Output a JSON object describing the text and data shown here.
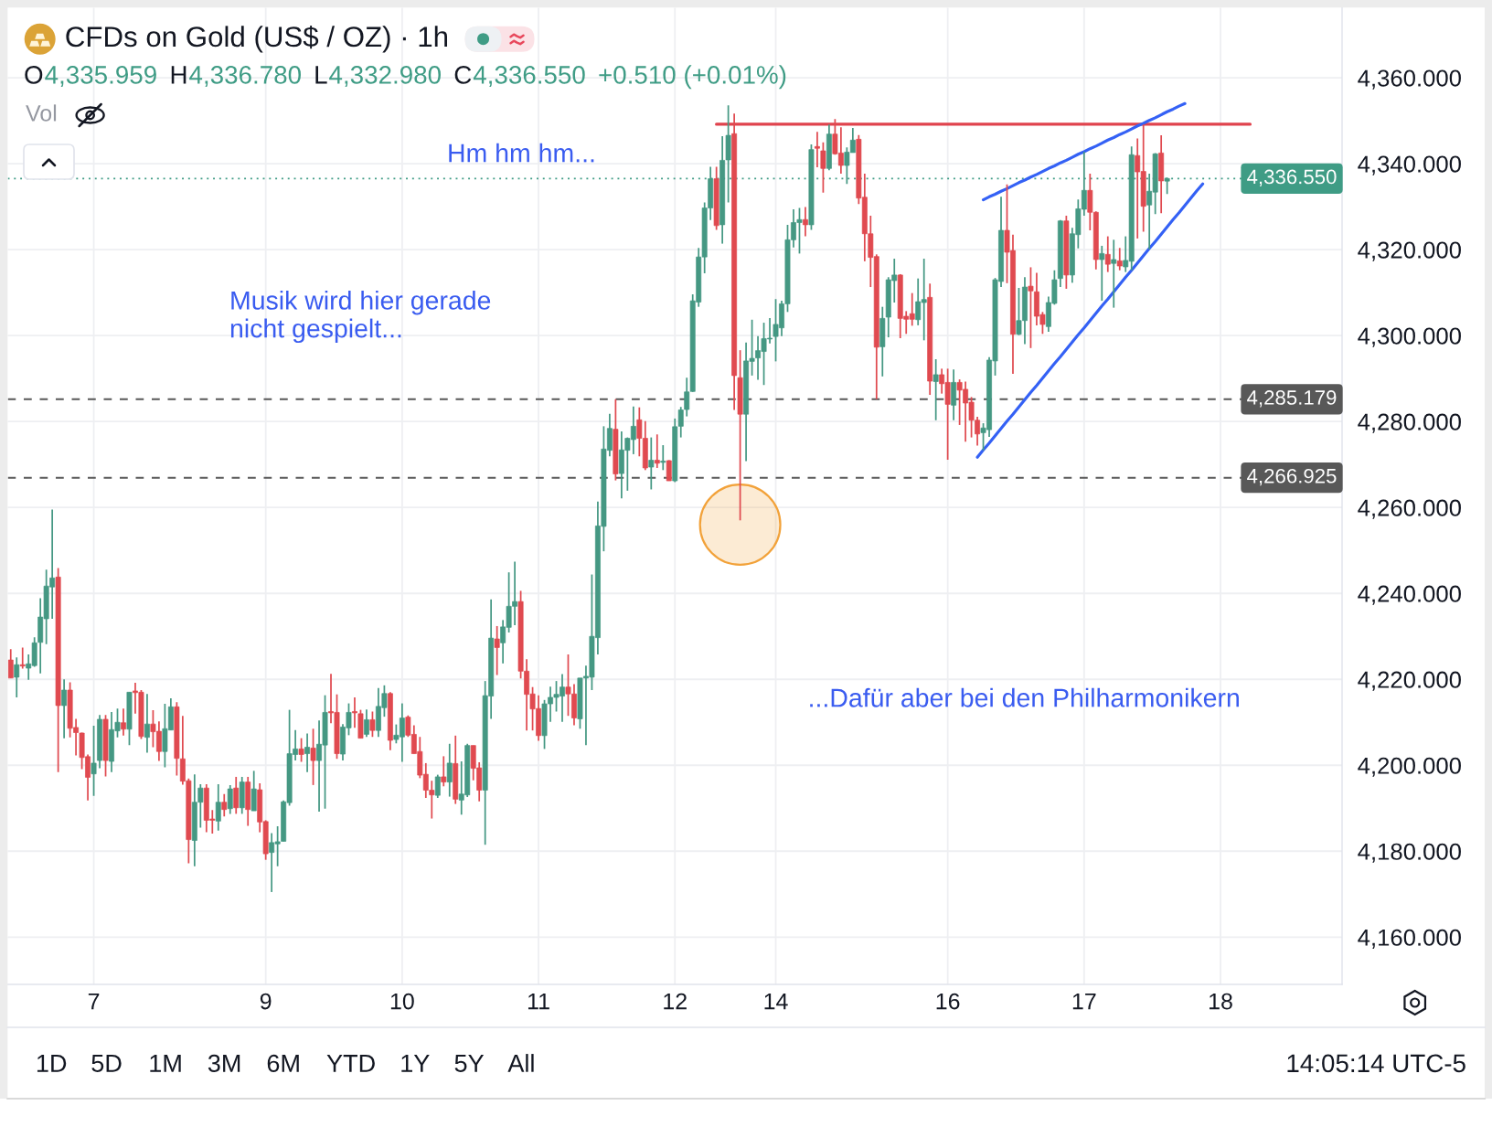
{
  "chart_data": {
    "type": "candlestick",
    "title": "CFDs on Gold (US$ / OZ) · 1h",
    "categories": [
      null,
      null,
      null,
      null,
      null,
      null,
      null,
      null,
      null,
      null,
      null,
      null,
      null,
      null,
      "7",
      null,
      null,
      null,
      null,
      null,
      null,
      null,
      null,
      null,
      null,
      null,
      null,
      null,
      null,
      null,
      null,
      null,
      null,
      null,
      null,
      null,
      null,
      null,
      null,
      null,
      null,
      null,
      null,
      "9",
      null,
      null,
      null,
      null,
      null,
      null,
      null,
      null,
      null,
      null,
      null,
      null,
      null,
      null,
      null,
      null,
      null,
      null,
      null,
      null,
      null,
      null,
      "10",
      null,
      null,
      null,
      null,
      null,
      null,
      null,
      null,
      null,
      null,
      null,
      null,
      null,
      null,
      null,
      null,
      null,
      null,
      null,
      null,
      null,
      null,
      "11",
      null,
      null,
      null,
      null,
      null,
      null,
      null,
      null,
      null,
      null,
      null,
      null,
      null,
      null,
      null,
      null,
      null,
      null,
      null,
      null,
      null,
      null,
      "12",
      null,
      null,
      null,
      null,
      null,
      null,
      null,
      null,
      null,
      null,
      null,
      null,
      null,
      null,
      null,
      null,
      "14",
      null,
      null,
      null,
      null,
      null,
      null,
      null,
      null,
      null,
      null,
      null,
      null,
      null,
      null,
      null,
      null,
      null,
      null,
      null,
      null,
      null,
      null,
      null,
      null,
      null,
      null,
      null,
      null,
      "16",
      null,
      null,
      null,
      null,
      null,
      null,
      null,
      null,
      null,
      null,
      null,
      null,
      null,
      null,
      null,
      null,
      null,
      null,
      null,
      null,
      null,
      null,
      "17",
      null,
      null,
      null,
      null,
      null,
      null,
      null,
      null,
      null,
      null,
      null,
      null,
      null,
      null,
      null,
      null,
      null,
      null,
      null,
      null,
      null,
      null,
      "18",
      null,
      null,
      null,
      null,
      null,
      null,
      null,
      null,
      null,
      null,
      null,
      null,
      null,
      null,
      null,
      null,
      null,
      null,
      null,
      null
    ],
    "ohlc": [
      [
        4224.5,
        4227.0,
        4220.3,
        4220.3
      ],
      [
        4220.5,
        4225.1,
        4215.8,
        4223.4
      ],
      [
        4223.4,
        4227.4,
        4222.5,
        4223.1
      ],
      [
        4222.6,
        4225.8,
        4219.9,
        4223.6
      ],
      [
        4223.2,
        4229.8,
        4222.9,
        4228.5
      ],
      [
        4228.6,
        4238.9,
        4221.4,
        4234.5
      ],
      [
        4234.1,
        4245.5,
        4228.2,
        4241.7
      ],
      [
        4241.5,
        4259.5,
        4234.1,
        4243.6
      ],
      [
        4243.8,
        4245.9,
        4198.4,
        4213.9
      ],
      [
        4213.9,
        4220.0,
        4206.3,
        4217.5
      ],
      [
        4217.5,
        4219.3,
        4206.5,
        4208.6
      ],
      [
        4208.8,
        4210.8,
        4202.3,
        4207.6
      ],
      [
        4207.5,
        4207.6,
        4199.1,
        4201.8
      ],
      [
        4202.0,
        4202.5,
        4191.8,
        4197.2
      ],
      [
        4198.0,
        4209.2,
        4192.9,
        4200.5
      ],
      [
        4201.1,
        4211.7,
        4199.3,
        4210.7
      ],
      [
        4210.7,
        4211.7,
        4197.4,
        4201.1
      ],
      [
        4200.9,
        4212.4,
        4198.4,
        4208.3
      ],
      [
        4208.0,
        4213.2,
        4206.5,
        4210.0
      ],
      [
        4209.9,
        4213.2,
        4206.9,
        4208.4
      ],
      [
        4208.4,
        4217.0,
        4204.7,
        4217.0
      ],
      [
        4217.3,
        4219.2,
        4212.0,
        4216.9
      ],
      [
        4217.0,
        4217.5,
        4206.1,
        4206.7
      ],
      [
        4206.5,
        4216.6,
        4202.9,
        4209.6
      ],
      [
        4209.6,
        4212.8,
        4204.2,
        4207.8
      ],
      [
        4207.9,
        4210.2,
        4201.0,
        4203.2
      ],
      [
        4203.2,
        4214.3,
        4199.5,
        4208.5
      ],
      [
        4208.2,
        4215.6,
        4208.2,
        4213.6
      ],
      [
        4213.6,
        4214.7,
        4197.6,
        4201.6
      ],
      [
        4201.5,
        4211.5,
        4195.5,
        4196.3
      ],
      [
        4196.4,
        4196.9,
        4177.2,
        4182.7
      ],
      [
        4182.5,
        4197.9,
        4176.5,
        4191.4
      ],
      [
        4191.4,
        4195.6,
        4185.5,
        4194.7
      ],
      [
        4194.7,
        4195.6,
        4184.4,
        4187.2
      ],
      [
        4187.5,
        4189.6,
        4184.1,
        4187.2
      ],
      [
        4187.0,
        4195.6,
        4184.8,
        4191.4
      ],
      [
        4191.4,
        4193.3,
        4188.1,
        4189.7
      ],
      [
        4189.9,
        4195.4,
        4188.7,
        4194.5
      ],
      [
        4194.7,
        4197.3,
        4188.7,
        4190.1
      ],
      [
        4190.1,
        4197.3,
        4188.7,
        4196.1
      ],
      [
        4196.1,
        4197.3,
        4185.9,
        4189.7
      ],
      [
        4189.4,
        4198.7,
        4189.4,
        4194.5
      ],
      [
        4194.3,
        4195.8,
        4184.4,
        4186.8
      ],
      [
        4186.9,
        4187.2,
        4178.0,
        4179.4
      ],
      [
        4179.7,
        4184.2,
        4170.5,
        4182.0
      ],
      [
        4181.7,
        4185.8,
        4176.5,
        4182.2
      ],
      [
        4182.3,
        4191.8,
        4182.3,
        4191.5
      ],
      [
        4191.3,
        4212.9,
        4190.6,
        4202.7
      ],
      [
        4202.5,
        4208.2,
        4201.1,
        4203.8
      ],
      [
        4203.8,
        4206.3,
        4200.8,
        4202.5
      ],
      [
        4202.7,
        4207.4,
        4198.4,
        4204.2
      ],
      [
        4204.0,
        4208.5,
        4195.4,
        4201.1
      ],
      [
        4201.1,
        4210.4,
        4189.2,
        4204.9
      ],
      [
        4204.7,
        4216.3,
        4189.9,
        4212.3
      ],
      [
        4212.5,
        4221.3,
        4209.8,
        4212.2
      ],
      [
        4212.3,
        4216.5,
        4201.5,
        4202.7
      ],
      [
        4202.6,
        4209.6,
        4201.1,
        4208.9
      ],
      [
        4208.7,
        4214.4,
        4207.0,
        4212.3
      ],
      [
        4212.5,
        4215.8,
        4208.7,
        4212.2
      ],
      [
        4212.0,
        4212.9,
        4206.3,
        4206.3
      ],
      [
        4207.2,
        4213.0,
        4206.6,
        4210.6
      ],
      [
        4210.6,
        4212.5,
        4206.6,
        4208.1
      ],
      [
        4208.1,
        4218.0,
        4206.6,
        4213.7
      ],
      [
        4213.4,
        4218.6,
        4211.3,
        4216.7
      ],
      [
        4216.7,
        4217.0,
        4203.5,
        4205.8
      ],
      [
        4206.0,
        4209.5,
        4205.1,
        4207.0
      ],
      [
        4206.6,
        4214.4,
        4200.8,
        4211.0
      ],
      [
        4211.2,
        4211.6,
        4206.6,
        4207.0
      ],
      [
        4207.2,
        4209.3,
        4202.7,
        4202.7
      ],
      [
        4203.2,
        4206.6,
        4197.0,
        4197.7
      ],
      [
        4197.9,
        4200.5,
        4192.4,
        4194.2
      ],
      [
        4194.2,
        4196.4,
        4187.6,
        4193.1
      ],
      [
        4193.0,
        4197.8,
        4192.4,
        4197.3
      ],
      [
        4197.3,
        4202.1,
        4195.1,
        4196.1
      ],
      [
        4196.1,
        4205.0,
        4192.7,
        4200.5
      ],
      [
        4200.4,
        4206.9,
        4191.0,
        4192.1
      ],
      [
        4191.9,
        4200.9,
        4188.5,
        4193.3
      ],
      [
        4193.1,
        4205.0,
        4192.6,
        4204.6
      ],
      [
        4204.6,
        4204.6,
        4196.5,
        4199.3
      ],
      [
        4199.4,
        4200.7,
        4191.6,
        4194.2
      ],
      [
        4194.2,
        4219.6,
        4181.5,
        4216.2
      ],
      [
        4216.1,
        4238.6,
        4210.8,
        4229.6
      ],
      [
        4229.4,
        4232.4,
        4221.0,
        4227.4
      ],
      [
        4228.5,
        4233.8,
        4223.7,
        4232.2
      ],
      [
        4232.1,
        4244.9,
        4230.9,
        4237.0
      ],
      [
        4237.0,
        4247.4,
        4232.6,
        4238.1
      ],
      [
        4238.1,
        4240.6,
        4220.2,
        4221.9
      ],
      [
        4221.9,
        4224.7,
        4208.1,
        4216.5
      ],
      [
        4216.6,
        4218.2,
        4208.1,
        4213.1
      ],
      [
        4213.2,
        4216.3,
        4205.7,
        4206.9
      ],
      [
        4206.9,
        4215.2,
        4203.8,
        4214.3
      ],
      [
        4214.3,
        4218.3,
        4210.1,
        4215.8
      ],
      [
        4215.8,
        4219.6,
        4212.5,
        4216.5
      ],
      [
        4216.1,
        4221.2,
        4210.1,
        4218.2
      ],
      [
        4218.2,
        4225.8,
        4211.5,
        4216.6
      ],
      [
        4216.6,
        4218.9,
        4209.3,
        4211.0
      ],
      [
        4210.8,
        4220.3,
        4208.5,
        4220.3
      ],
      [
        4220.3,
        4223.2,
        4204.7,
        4220.7
      ],
      [
        4220.5,
        4244.4,
        4217.5,
        4230.0
      ],
      [
        4229.7,
        4261.4,
        4225.8,
        4255.7
      ],
      [
        4255.6,
        4278.9,
        4249.8,
        4273.6
      ],
      [
        4273.3,
        4281.8,
        4271.9,
        4278.4
      ],
      [
        4278.2,
        4285.2,
        4266.3,
        4267.8
      ],
      [
        4267.9,
        4277.7,
        4262.1,
        4273.4
      ],
      [
        4273.3,
        4276.3,
        4263.9,
        4276.1
      ],
      [
        4275.8,
        4283.5,
        4272.4,
        4278.9
      ],
      [
        4280.4,
        4283.3,
        4271.9,
        4276.1
      ],
      [
        4276.1,
        4280.1,
        4268.7,
        4269.2
      ],
      [
        4269.4,
        4276.3,
        4264.2,
        4271.0
      ],
      [
        4271.0,
        4277.0,
        4269.2,
        4270.3
      ],
      [
        4270.5,
        4274.5,
        4268.7,
        4270.8
      ],
      [
        4270.9,
        4271.0,
        4266.2,
        4266.2
      ],
      [
        4266.2,
        4280.7,
        4265.9,
        4278.8
      ],
      [
        4278.9,
        4283.4,
        4276.3,
        4282.7
      ],
      [
        4282.8,
        4290.2,
        4281.2,
        4286.9
      ],
      [
        4287.0,
        4309.6,
        4286.9,
        4308.1
      ],
      [
        4307.8,
        4320.4,
        4306.7,
        4318.3
      ],
      [
        4318.3,
        4331.0,
        4314.5,
        4329.7
      ],
      [
        4329.7,
        4339.3,
        4326.9,
        4336.5
      ],
      [
        4336.5,
        4339.3,
        4324.6,
        4325.6
      ],
      [
        4325.8,
        4346.4,
        4321.4,
        4340.8
      ],
      [
        4340.9,
        4353.6,
        4331.0,
        4346.6
      ],
      [
        4347.0,
        4351.7,
        4282.7,
        4290.7
      ],
      [
        4290.2,
        4296.6,
        4257.0,
        4281.7
      ],
      [
        4281.7,
        4298.4,
        4270.8,
        4294.1
      ],
      [
        4294.0,
        4303.7,
        4290.7,
        4294.7
      ],
      [
        4294.8,
        4299.9,
        4289.7,
        4296.5
      ],
      [
        4296.3,
        4303.0,
        4288.5,
        4299.3
      ],
      [
        4299.2,
        4304.1,
        4298.2,
        4299.4
      ],
      [
        4299.8,
        4308.5,
        4294.0,
        4302.6
      ],
      [
        4301.8,
        4308.1,
        4299.9,
        4307.4
      ],
      [
        4307.4,
        4325.8,
        4305.5,
        4322.3
      ],
      [
        4322.3,
        4329.4,
        4320.5,
        4326.3
      ],
      [
        4326.3,
        4329.7,
        4319.1,
        4327.0
      ],
      [
        4327.0,
        4329.9,
        4323.1,
        4325.8
      ],
      [
        4325.8,
        4344.5,
        4324.6,
        4343.3
      ],
      [
        4344.0,
        4347.4,
        4339.2,
        4343.6
      ],
      [
        4343.0,
        4345.0,
        4333.3,
        4338.9
      ],
      [
        4338.9,
        4349.1,
        4338.5,
        4346.9
      ],
      [
        4346.9,
        4350.4,
        4342.1,
        4342.3
      ],
      [
        4342.5,
        4348.5,
        4337.7,
        4339.6
      ],
      [
        4339.6,
        4343.8,
        4335.3,
        4342.7
      ],
      [
        4342.6,
        4348.3,
        4342.6,
        4345.5
      ],
      [
        4345.7,
        4346.7,
        4330.6,
        4332.0
      ],
      [
        4332.2,
        4337.7,
        4317.3,
        4323.7
      ],
      [
        4323.7,
        4327.9,
        4311.3,
        4318.2
      ],
      [
        4318.4,
        4318.9,
        4285.2,
        4297.3
      ],
      [
        4297.4,
        4306.7,
        4290.5,
        4304.0
      ],
      [
        4304.3,
        4313.6,
        4299.6,
        4313.0
      ],
      [
        4312.8,
        4317.9,
        4307.7,
        4314.1
      ],
      [
        4314.1,
        4314.3,
        4299.4,
        4304.0
      ],
      [
        4304.5,
        4305.7,
        4300.4,
        4303.8
      ],
      [
        4305.1,
        4309.9,
        4302.3,
        4303.8
      ],
      [
        4303.7,
        4313.3,
        4302.4,
        4307.9
      ],
      [
        4307.7,
        4317.9,
        4298.9,
        4308.4
      ],
      [
        4308.9,
        4312.1,
        4286.2,
        4289.4
      ],
      [
        4289.3,
        4294.5,
        4280.3,
        4290.9
      ],
      [
        4290.9,
        4292.3,
        4286.5,
        4288.8
      ],
      [
        4289.1,
        4292.3,
        4271.1,
        4284.0
      ],
      [
        4283.8,
        4292.1,
        4280.3,
        4289.1
      ],
      [
        4289.1,
        4289.8,
        4279.2,
        4287.3
      ],
      [
        4287.5,
        4289.3,
        4275.3,
        4284.3
      ],
      [
        4284.5,
        4285.7,
        4276.3,
        4280.3
      ],
      [
        4280.3,
        4281.1,
        4274.4,
        4277.1
      ],
      [
        4277.4,
        4279.6,
        4273.3,
        4278.5
      ],
      [
        4278.1,
        4295.0,
        4276.4,
        4294.3
      ],
      [
        4294.1,
        4313.4,
        4290.7,
        4313.0
      ],
      [
        4312.6,
        4332.3,
        4311.3,
        4324.5
      ],
      [
        4324.5,
        4335.2,
        4312.2,
        4319.4
      ],
      [
        4319.8,
        4323.5,
        4291.1,
        4300.3
      ],
      [
        4300.3,
        4311.1,
        4300.1,
        4303.5
      ],
      [
        4303.5,
        4313.6,
        4298.0,
        4311.3
      ],
      [
        4311.5,
        4315.9,
        4297.1,
        4310.4
      ],
      [
        4310.2,
        4314.6,
        4302.4,
        4304.5
      ],
      [
        4304.9,
        4305.5,
        4300.4,
        4302.6
      ],
      [
        4302.1,
        4309.1,
        4300.9,
        4307.7
      ],
      [
        4307.5,
        4315.2,
        4307.2,
        4313.0
      ],
      [
        4313.3,
        4326.9,
        4311.3,
        4326.7
      ],
      [
        4326.7,
        4327.9,
        4310.9,
        4314.1
      ],
      [
        4314.1,
        4325.1,
        4312.3,
        4323.7
      ],
      [
        4323.5,
        4331.7,
        4320.3,
        4329.5
      ],
      [
        4329.4,
        4342.8,
        4327.9,
        4333.8
      ],
      [
        4333.8,
        4337.7,
        4324.5,
        4328.7
      ],
      [
        4328.7,
        4328.9,
        4315.4,
        4317.7
      ],
      [
        4317.7,
        4320.9,
        4308.1,
        4319.1
      ],
      [
        4318.9,
        4323.1,
        4314.8,
        4316.6
      ],
      [
        4316.8,
        4322.3,
        4306.5,
        4317.7
      ],
      [
        4317.4,
        4320.4,
        4315.2,
        4316.2
      ],
      [
        4316.0,
        4323.1,
        4314.8,
        4317.5
      ],
      [
        4317.3,
        4344.0,
        4315.2,
        4342.1
      ],
      [
        4341.9,
        4345.9,
        4322.6,
        4338.1
      ],
      [
        4338.2,
        4349.1,
        4324.2,
        4330.1
      ],
      [
        4330.4,
        4337.7,
        4320.1,
        4333.6
      ],
      [
        4333.4,
        4342.5,
        4328.3,
        4342.3
      ],
      [
        4342.5,
        4346.6,
        4328.5,
        4336.0
      ],
      [
        4335.959,
        4336.78,
        4332.98,
        4336.55
      ],
      null,
      null,
      null,
      null,
      null,
      null,
      null,
      null,
      null,
      null,
      null,
      null,
      null,
      null,
      null,
      null,
      null,
      null,
      null,
      null,
      null,
      null,
      null,
      null,
      null,
      null,
      null,
      null,
      null
    ],
    "colors": [
      "#e04a50",
      "#459883",
      "#e04a50",
      "#459883",
      "#459883",
      "#459883",
      "#459883",
      "#459883",
      "#e04a50",
      "#459883",
      "#e04a50",
      "#e04a50",
      "#e04a50",
      "#e04a50",
      "#459883",
      "#459883",
      "#e04a50",
      "#459883",
      "#459883",
      "#e04a50",
      "#459883",
      "#e04a50",
      "#e04a50",
      "#459883",
      "#e04a50",
      "#e04a50",
      "#459883",
      "#459883",
      "#e04a50",
      "#e04a50",
      "#e04a50",
      "#459883",
      "#459883",
      "#e04a50",
      "#e04a50",
      "#459883",
      "#e04a50",
      "#459883",
      "#e04a50",
      "#459883",
      "#e04a50",
      "#459883",
      "#e04a50",
      "#e04a50",
      "#459883",
      "#459883",
      "#459883",
      "#459883",
      "#459883",
      "#e04a50",
      "#459883",
      "#e04a50",
      "#459883",
      "#459883",
      "#e04a50",
      "#e04a50",
      "#459883",
      "#459883",
      "#e04a50",
      "#e04a50",
      "#459883",
      "#e04a50",
      "#459883",
      "#459883",
      "#e04a50",
      "#459883",
      "#459883",
      "#e04a50",
      "#e04a50",
      "#e04a50",
      "#e04a50",
      "#e04a50",
      "#459883",
      "#e04a50",
      "#459883",
      "#e04a50",
      "#459883",
      "#459883",
      "#e04a50",
      "#e04a50",
      "#459883",
      "#459883",
      "#e04a50",
      "#459883",
      "#459883",
      "#459883",
      "#e04a50",
      "#e04a50",
      "#e04a50",
      "#e04a50",
      "#459883",
      "#459883",
      "#459883",
      "#459883",
      "#e04a50",
      "#e04a50",
      "#459883",
      "#459883",
      "#459883",
      "#459883",
      "#459883",
      "#459883",
      "#e04a50",
      "#459883",
      "#459883",
      "#459883",
      "#e04a50",
      "#e04a50",
      "#459883",
      "#e04a50",
      "#459883",
      "#e04a50",
      "#459883",
      "#459883",
      "#459883",
      "#459883",
      "#459883",
      "#459883",
      "#459883",
      "#e04a50",
      "#459883",
      "#459883",
      "#e04a50",
      "#e04a50",
      "#459883",
      "#459883",
      "#459883",
      "#459883",
      "#459883",
      "#459883",
      "#459883",
      "#459883",
      "#459883",
      "#459883",
      "#e04a50",
      "#459883",
      "#e04a50",
      "#e04a50",
      "#459883",
      "#e04a50",
      "#e04a50",
      "#459883",
      "#459883",
      "#e04a50",
      "#e04a50",
      "#e04a50",
      "#e04a50",
      "#459883",
      "#459883",
      "#459883",
      "#e04a50",
      "#e04a50",
      "#e04a50",
      "#459883",
      "#459883",
      "#e04a50",
      "#459883",
      "#e04a50",
      "#e04a50",
      "#459883",
      "#e04a50",
      "#e04a50",
      "#e04a50",
      "#e04a50",
      "#459883",
      "#459883",
      "#459883",
      "#459883",
      "#e04a50",
      "#e04a50",
      "#459883",
      "#459883",
      "#e04a50",
      "#e04a50",
      "#e04a50",
      "#459883",
      "#459883",
      "#459883",
      "#e04a50",
      "#459883",
      "#459883",
      "#459883",
      "#e04a50",
      "#e04a50",
      "#459883",
      "#e04a50",
      "#459883",
      "#e04a50",
      "#459883",
      "#459883",
      "#e04a50",
      "#e04a50",
      "#459883",
      "#459883",
      "#e04a50",
      "#459883",
      null,
      null,
      null,
      null,
      null,
      null,
      null,
      null,
      null,
      null,
      null,
      null,
      null,
      null,
      null,
      null,
      null,
      null,
      null,
      null,
      null,
      null,
      null,
      null,
      null,
      null,
      null,
      null,
      null
    ],
    "series": [
      {
        "type": "line",
        "color": "#e0434d",
        "values": [
          null,
          null,
          null,
          null,
          null,
          null,
          null,
          null,
          null,
          null,
          null,
          null,
          null,
          null,
          null,
          null,
          null,
          null,
          null,
          null,
          null,
          null,
          null,
          null,
          null,
          null,
          null,
          null,
          null,
          null,
          null,
          null,
          null,
          null,
          null,
          null,
          null,
          null,
          null,
          null,
          null,
          null,
          null,
          null,
          null,
          null,
          null,
          null,
          null,
          null,
          null,
          null,
          null,
          null,
          null,
          null,
          null,
          null,
          null,
          null,
          null,
          null,
          null,
          null,
          null,
          null,
          null,
          null,
          null,
          null,
          null,
          null,
          null,
          null,
          null,
          null,
          null,
          null,
          null,
          null,
          null,
          null,
          null,
          null,
          null,
          null,
          null,
          null,
          null,
          null,
          null,
          null,
          null,
          null,
          null,
          null,
          null,
          null,
          null,
          null,
          null,
          null,
          null,
          null,
          null,
          null,
          null,
          null,
          null,
          null,
          null,
          null,
          null,
          null,
          null,
          null,
          null,
          null,
          null,
          4349.2,
          4349.2,
          4349.2,
          4349.2,
          4349.2,
          4349.2,
          4349.2,
          4349.2,
          4349.2,
          4349.2,
          4349.2,
          4349.2,
          4349.2,
          4349.2,
          4349.2,
          4349.2,
          4349.2,
          4349.2,
          4349.2,
          4349.2,
          4349.2,
          4349.2,
          4349.2,
          4349.2,
          4349.2,
          4349.2,
          4349.2,
          4349.2,
          4349.2,
          4349.2,
          4349.2,
          4349.2,
          4349.2,
          4349.2,
          4349.2,
          4349.2,
          4349.2,
          4349.2,
          4349.2,
          4349.2,
          4349.2,
          4349.2,
          4349.2,
          4349.2,
          4349.2,
          4349.2,
          4349.2,
          4349.2,
          4349.2,
          4349.2,
          4349.2,
          4349.2,
          4349.2,
          4349.2,
          4349.2,
          4349.2,
          4349.2,
          4349.2,
          4349.2,
          4349.2,
          4349.2,
          4349.2,
          4349.2,
          4349.2,
          4349.2,
          4349.2,
          4349.2,
          4349.2,
          4349.2,
          4349.2,
          4349.2,
          4349.2,
          4349.2,
          4349.2,
          4349.2,
          4349.2,
          4349.2,
          4349.2,
          4349.2,
          4349.2,
          4349.2,
          4349.2,
          4349.2,
          4349.2,
          4349.2,
          4349.2,
          4349.2,
          4349.2,
          4349.2,
          4349.2,
          4349.2,
          null,
          null,
          null,
          null,
          null,
          null,
          null,
          null,
          null,
          null,
          null,
          null,
          null,
          null,
          null
        ]
      },
      {
        "type": "line",
        "color": "#3461f5",
        "values": [
          null,
          null,
          null,
          null,
          null,
          null,
          null,
          null,
          null,
          null,
          null,
          null,
          null,
          null,
          null,
          null,
          null,
          null,
          null,
          null,
          null,
          null,
          null,
          null,
          null,
          null,
          null,
          null,
          null,
          null,
          null,
          null,
          null,
          null,
          null,
          null,
          null,
          null,
          null,
          null,
          null,
          null,
          null,
          null,
          null,
          null,
          null,
          null,
          null,
          null,
          null,
          null,
          null,
          null,
          null,
          null,
          null,
          null,
          null,
          null,
          null,
          null,
          null,
          null,
          null,
          null,
          null,
          null,
          null,
          null,
          null,
          null,
          null,
          null,
          null,
          null,
          null,
          null,
          null,
          null,
          null,
          null,
          null,
          null,
          null,
          null,
          null,
          null,
          null,
          null,
          null,
          null,
          null,
          null,
          null,
          null,
          null,
          null,
          null,
          null,
          null,
          null,
          null,
          null,
          null,
          null,
          null,
          null,
          null,
          null,
          null,
          null,
          null,
          null,
          null,
          null,
          null,
          null,
          null,
          null,
          null,
          null,
          null,
          null,
          null,
          null,
          null,
          null,
          null,
          null,
          null,
          null,
          null,
          null,
          null,
          null,
          null,
          null,
          null,
          null,
          null,
          null,
          null,
          null,
          null,
          null,
          null,
          null,
          null,
          null,
          null,
          null,
          null,
          null,
          null,
          null,
          null,
          null,
          null,
          null,
          null,
          null,
          null,
          null,
          4331.6,
          4332.3,
          4332.9,
          4333.6,
          4334.2,
          4334.9,
          4335.6,
          4336.2,
          4336.9,
          4337.5,
          4338.2,
          4338.9,
          4339.5,
          4340.2,
          4340.8,
          4341.5,
          4342.2,
          4342.8,
          4343.5,
          4344.1,
          4344.8,
          4345.5,
          4346.1,
          4346.8,
          4347.4,
          4348.1,
          4348.8,
          4349.4,
          4350.1,
          4350.7,
          4351.4,
          4352.1,
          4352.7,
          4353.4,
          4354.0,
          null,
          null,
          null,
          null,
          null,
          null,
          null,
          null,
          null,
          null,
          null,
          null,
          null,
          null,
          null,
          null,
          null,
          null,
          null,
          null,
          null,
          null,
          null,
          null,
          null,
          null
        ]
      },
      {
        "type": "line",
        "color": "#3461f5",
        "values": [
          null,
          null,
          null,
          null,
          null,
          null,
          null,
          null,
          null,
          null,
          null,
          null,
          null,
          null,
          null,
          null,
          null,
          null,
          null,
          null,
          null,
          null,
          null,
          null,
          null,
          null,
          null,
          null,
          null,
          null,
          null,
          null,
          null,
          null,
          null,
          null,
          null,
          null,
          null,
          null,
          null,
          null,
          null,
          null,
          null,
          null,
          null,
          null,
          null,
          null,
          null,
          null,
          null,
          null,
          null,
          null,
          null,
          null,
          null,
          null,
          null,
          null,
          null,
          null,
          null,
          null,
          null,
          null,
          null,
          null,
          null,
          null,
          null,
          null,
          null,
          null,
          null,
          null,
          null,
          null,
          null,
          null,
          null,
          null,
          null,
          null,
          null,
          null,
          null,
          null,
          null,
          null,
          null,
          null,
          null,
          null,
          null,
          null,
          null,
          null,
          null,
          null,
          null,
          null,
          null,
          null,
          null,
          null,
          null,
          null,
          null,
          null,
          null,
          null,
          null,
          null,
          null,
          null,
          null,
          null,
          null,
          null,
          null,
          null,
          null,
          null,
          null,
          null,
          null,
          null,
          null,
          null,
          null,
          null,
          null,
          null,
          null,
          null,
          null,
          null,
          null,
          null,
          null,
          null,
          null,
          null,
          null,
          null,
          null,
          null,
          null,
          null,
          null,
          null,
          null,
          null,
          null,
          null,
          null,
          null,
          null,
          null,
          null,
          4271.7,
          4273.4,
          4275.0,
          4276.7,
          4278.4,
          4280.1,
          4281.7,
          4283.4,
          4285.1,
          4286.8,
          4288.4,
          4290.1,
          4291.8,
          4293.5,
          4295.1,
          4296.8,
          4298.5,
          4300.2,
          4301.8,
          4303.5,
          4305.2,
          4306.9,
          4308.5,
          4310.2,
          4311.9,
          4313.6,
          4315.2,
          4316.9,
          4318.6,
          4320.3,
          4321.9,
          4323.6,
          4325.3,
          4327.0,
          4328.6,
          4330.3,
          4332.0,
          4333.7,
          4335.3,
          null,
          null,
          null,
          null,
          null,
          null,
          null,
          null,
          null,
          null,
          null,
          null,
          null,
          null,
          null,
          null,
          null,
          null,
          null,
          null,
          null,
          null,
          null
        ]
      },
      {
        "type": "scatter",
        "color": "#f2a23a",
        "marker": "circle",
        "values": [
          null,
          null,
          null,
          null,
          null,
          null,
          null,
          null,
          null,
          null,
          null,
          null,
          null,
          null,
          null,
          null,
          null,
          null,
          null,
          null,
          null,
          null,
          null,
          null,
          null,
          null,
          null,
          null,
          null,
          null,
          null,
          null,
          null,
          null,
          null,
          null,
          null,
          null,
          null,
          null,
          null,
          null,
          null,
          null,
          null,
          null,
          null,
          null,
          null,
          null,
          null,
          null,
          null,
          null,
          null,
          null,
          null,
          null,
          null,
          null,
          null,
          null,
          null,
          null,
          null,
          null,
          null,
          null,
          null,
          null,
          null,
          null,
          null,
          null,
          null,
          null,
          null,
          null,
          null,
          null,
          null,
          null,
          null,
          null,
          null,
          null,
          null,
          null,
          null,
          null,
          null,
          null,
          null,
          null,
          null,
          null,
          null,
          null,
          null,
          null,
          null,
          null,
          null,
          null,
          null,
          null,
          null,
          null,
          null,
          null,
          null,
          null,
          null,
          null,
          null,
          null,
          null,
          null,
          null,
          null,
          null,
          null,
          null,
          4256,
          null,
          null,
          null,
          null,
          null,
          null,
          null,
          null,
          null,
          null,
          null,
          null,
          null,
          null,
          null,
          null,
          null,
          null,
          null,
          null,
          null,
          null,
          null,
          null,
          null,
          null,
          null,
          null,
          null,
          null,
          null,
          null,
          null,
          null,
          null,
          null,
          null,
          null,
          null,
          null,
          null,
          null,
          null,
          null,
          null,
          null,
          null,
          null,
          null,
          null,
          null,
          null,
          null,
          null,
          null,
          null,
          null,
          null,
          null,
          null,
          null,
          null,
          null,
          null,
          null,
          null,
          null,
          null,
          null,
          null,
          null,
          null,
          null,
          null,
          null,
          null,
          null,
          null,
          null,
          null,
          null,
          null,
          null,
          null,
          null,
          null,
          null,
          null,
          null,
          null,
          null,
          null,
          null,
          null,
          null,
          null,
          null,
          null,
          null,
          null,
          null
        ]
      }
    ],
    "ref_lines": [
      {
        "axis": "y",
        "value": 4336.55,
        "label": "4,336.550",
        "color": "#3f9c85",
        "line_style": "dotted"
      },
      {
        "axis": "y",
        "value": 4285.179,
        "label": "4,285.179",
        "color": "#585858",
        "line_style": "dashed"
      },
      {
        "axis": "y",
        "value": 4266.925,
        "label": "4,266.925",
        "color": "#585858",
        "line_style": "dashed"
      }
    ],
    "ylim": [
      4149.0,
      4376.3
    ],
    "yticks": [
      {
        "value": 4160,
        "label": "4,160.000"
      },
      {
        "value": 4180,
        "label": "4,180.000"
      },
      {
        "value": 4200,
        "label": "4,200.000"
      },
      {
        "value": 4220,
        "label": "4,220.000"
      },
      {
        "value": 4240,
        "label": "4,240.000"
      },
      {
        "value": 4260,
        "label": "4,260.000"
      },
      {
        "value": 4280,
        "label": "4,280.000"
      },
      {
        "value": 4300,
        "label": "4,300.000"
      },
      {
        "value": 4320,
        "label": "4,320.000"
      },
      {
        "value": 4340,
        "label": "4,340.000"
      },
      {
        "value": 4360,
        "label": "4,360.000"
      }
    ],
    "grid": true,
    "annotations": [
      "O4,335.959",
      "H4,336.780",
      "L4,332.980",
      "C4,336.550",
      "+0.510 (+0.01%)",
      "Vol",
      "Hm hm hm...",
      "Musik wird hier gerade\nnicht gespielt...",
      "...Dafür aber bei den Philharmonikern",
      "1D",
      "5D",
      "1M",
      "3M",
      "6M",
      "YTD",
      "1Y",
      "5Y",
      "All",
      "14:05:14 UTC-5"
    ]
  }
}
